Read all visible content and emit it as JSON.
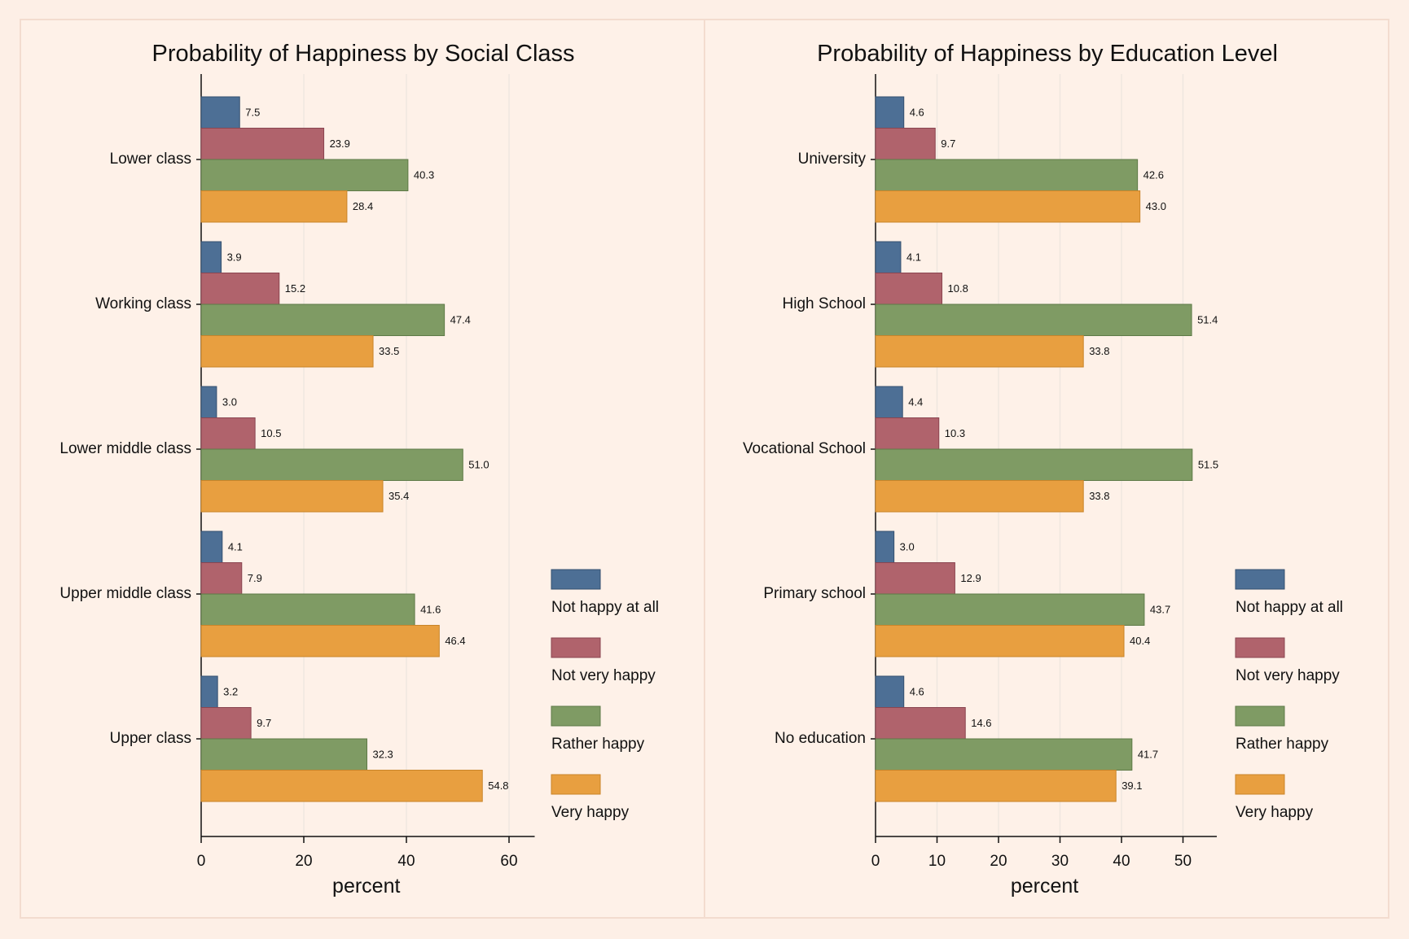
{
  "colors": {
    "background": "#fdefe6",
    "series": [
      "#4d6f95",
      "#b0636c",
      "#7f9b64",
      "#e89f40"
    ],
    "series_stroke": [
      "#34506f",
      "#8a4550",
      "#5e7a47",
      "#c98429"
    ]
  },
  "chart_data": [
    {
      "type": "bar",
      "orientation": "horizontal",
      "title": "Probability of Happiness by Social Class",
      "xlabel": "percent",
      "ylabel": "",
      "xlim": [
        0,
        65
      ],
      "xticks": [
        0,
        20,
        40,
        60
      ],
      "grid": true,
      "legend_position": "right",
      "categories": [
        "Lower class",
        "Working class",
        "Lower middle class",
        "Upper middle class",
        "Upper class"
      ],
      "series": [
        {
          "name": "Not happy at all",
          "values": [
            7.5,
            3.9,
            3.0,
            4.1,
            3.2
          ],
          "labels": [
            "7.5",
            "3.9",
            "3.0",
            "4.1",
            "3.2"
          ]
        },
        {
          "name": "Not very happy",
          "values": [
            23.9,
            15.2,
            10.5,
            7.9,
            9.7
          ],
          "labels": [
            "23.9",
            "15.2",
            "10.5",
            "7.9",
            "9.7"
          ]
        },
        {
          "name": "Rather happy",
          "values": [
            40.3,
            47.4,
            51.0,
            41.6,
            32.3
          ],
          "labels": [
            "40.3",
            "47.4",
            "51.0",
            "41.6",
            "32.3"
          ]
        },
        {
          "name": "Very happy",
          "values": [
            28.4,
            33.5,
            35.4,
            46.4,
            54.8
          ],
          "labels": [
            "28.4",
            "33.5",
            "35.4",
            "46.4",
            "54.8"
          ]
        }
      ]
    },
    {
      "type": "bar",
      "orientation": "horizontal",
      "title": "Probability of Happiness by Education Level",
      "xlabel": "percent",
      "ylabel": "",
      "xlim": [
        0,
        55.5
      ],
      "xticks": [
        0,
        10,
        20,
        30,
        40,
        50
      ],
      "grid": true,
      "legend_position": "right",
      "categories": [
        "University",
        "High School",
        "Vocational School",
        "Primary school",
        "No education"
      ],
      "series": [
        {
          "name": "Not happy at all",
          "values": [
            4.6,
            4.1,
            4.4,
            3.0,
            4.6
          ],
          "labels": [
            "4.6",
            "4.1",
            "4.4",
            "3.0",
            "4.6"
          ]
        },
        {
          "name": "Not very happy",
          "values": [
            9.7,
            10.8,
            10.3,
            12.9,
            14.6
          ],
          "labels": [
            "9.7",
            "10.8",
            "10.3",
            "12.9",
            "14.6"
          ]
        },
        {
          "name": "Rather happy",
          "values": [
            42.6,
            51.4,
            51.5,
            43.7,
            41.7
          ],
          "labels": [
            "42.6",
            "51.4",
            "51.5",
            "43.7",
            "41.7"
          ]
        },
        {
          "name": "Very happy",
          "values": [
            43.0,
            33.8,
            33.8,
            40.4,
            39.1
          ],
          "labels": [
            "43.0",
            "33.8",
            "33.8",
            "40.4",
            "39.1"
          ]
        }
      ]
    }
  ]
}
